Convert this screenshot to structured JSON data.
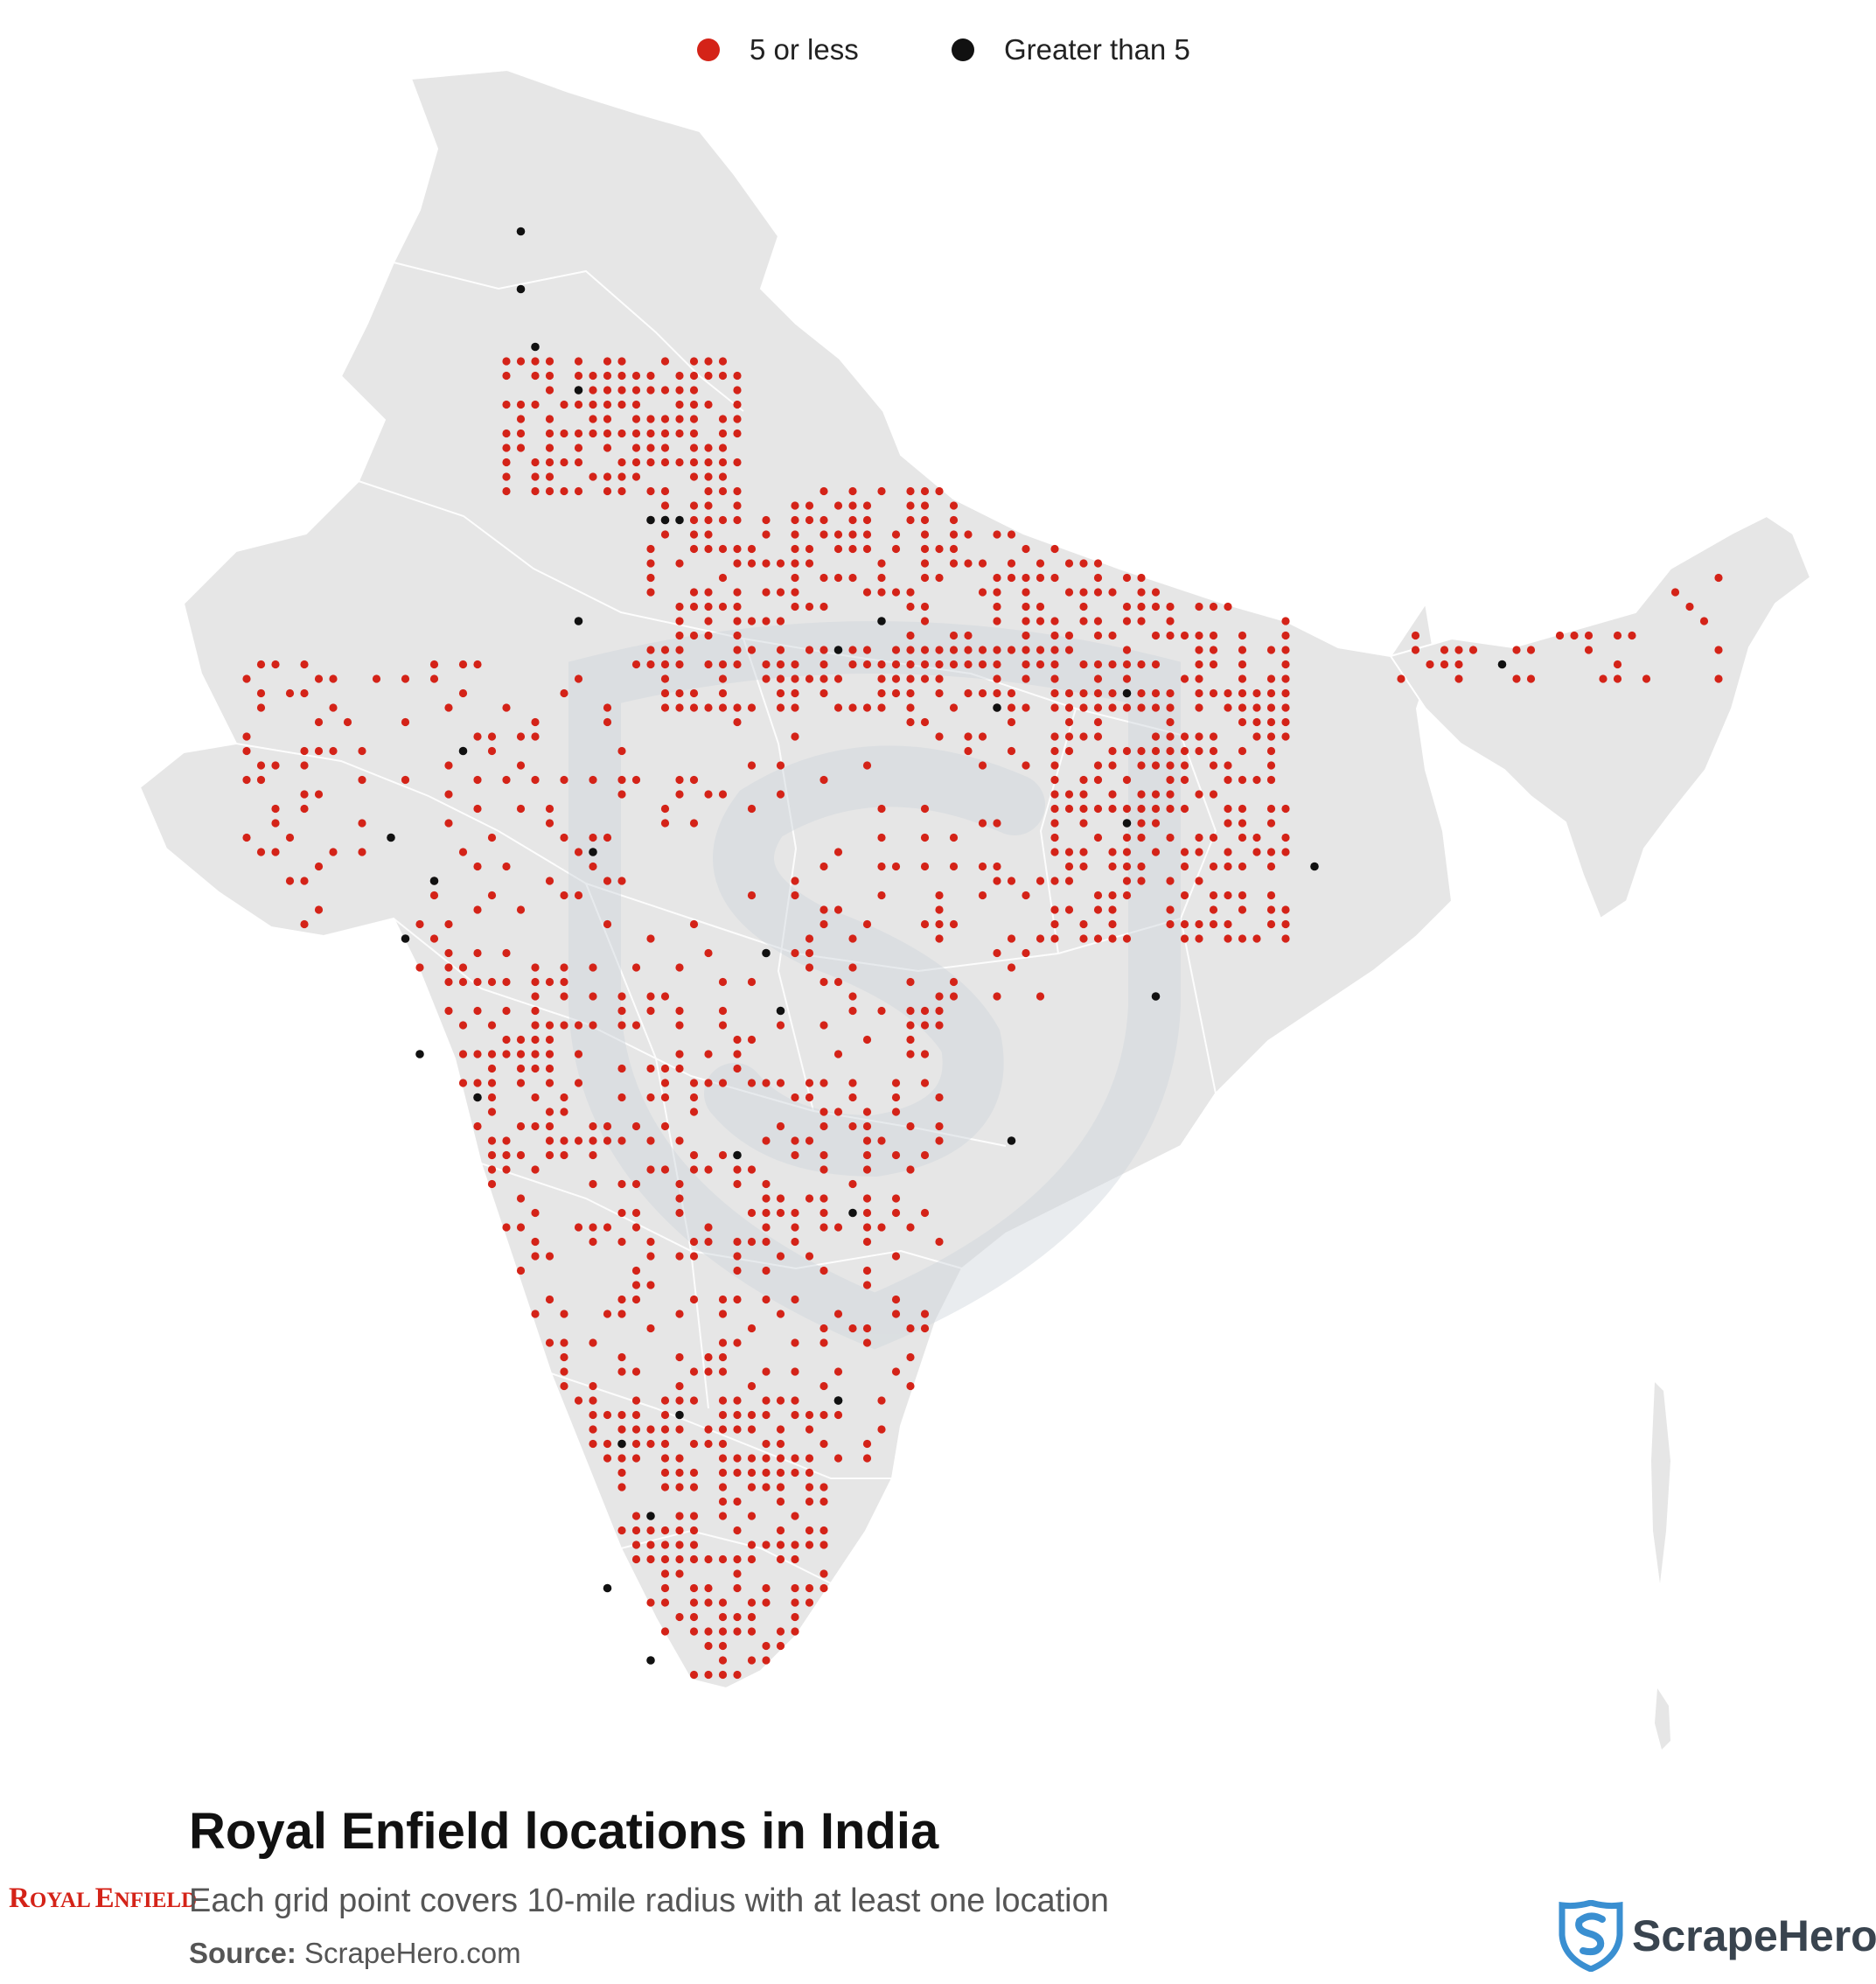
{
  "legend": {
    "items": [
      {
        "label": "5 or less",
        "color": "#d42318"
      },
      {
        "label": "Greater than 5",
        "color": "#111111"
      }
    ]
  },
  "title": "Royal Enfield locations in India",
  "subtitle": "Each grid point covers 10-mile radius with at least one location",
  "source": {
    "key": "Source:",
    "value": "ScrapeHero.com"
  },
  "brand": {
    "logo_text": "Royal Enfield",
    "logo_style": "red serif small-caps wordmark"
  },
  "publisher": {
    "name": "ScrapeHero",
    "icon": "shield-s-icon",
    "color": "#3a8fd1"
  },
  "map": {
    "region": "India",
    "land_color": "#e6e6e6",
    "border_color": "#ffffff",
    "watermark": "shield-s-icon",
    "clusters": [
      {
        "lat": [
          29.0,
          31.5
        ],
        "lon": [
          74.5,
          78.5
        ],
        "density": 0.7
      },
      {
        "lat": [
          25.0,
          29.0
        ],
        "lon": [
          77.0,
          88.0
        ],
        "density": 0.55
      },
      {
        "lat": [
          21.0,
          25.5
        ],
        "lon": [
          84.0,
          88.0
        ],
        "density": 0.55
      },
      {
        "lat": [
          8.0,
          13.0
        ],
        "lon": [
          76.0,
          80.0
        ],
        "density": 0.6
      },
      {
        "lat": [
          17.0,
          21.0
        ],
        "lon": [
          72.5,
          75.5
        ],
        "density": 0.35
      },
      {
        "lat": [
          12.0,
          20.0
        ],
        "lon": [
          74.0,
          82.0
        ],
        "density": 0.3
      },
      {
        "lat": [
          20.0,
          26.0
        ],
        "lon": [
          70.0,
          84.0
        ],
        "density": 0.18
      },
      {
        "lat": [
          25.5,
          27.5
        ],
        "lon": [
          90.0,
          95.5
        ],
        "density": 0.3
      }
    ],
    "large_points": [
      [
        33.7,
        74.8
      ],
      [
        32.7,
        74.8
      ],
      [
        31.6,
        74.9
      ],
      [
        30.9,
        75.8
      ],
      [
        28.6,
        77.2
      ],
      [
        28.7,
        77.4
      ],
      [
        28.5,
        77.0
      ],
      [
        26.9,
        80.9
      ],
      [
        26.4,
        80.3
      ],
      [
        25.3,
        83.0
      ],
      [
        25.6,
        85.1
      ],
      [
        22.6,
        88.4
      ],
      [
        23.3,
        85.3
      ],
      [
        22.3,
        73.2
      ],
      [
        23.0,
        72.6
      ],
      [
        21.2,
        72.8
      ],
      [
        19.1,
        72.9
      ],
      [
        18.5,
        73.9
      ],
      [
        17.4,
        78.5
      ],
      [
        17.7,
        83.3
      ],
      [
        16.5,
        80.6
      ],
      [
        13.1,
        80.3
      ],
      [
        13.0,
        80.2
      ],
      [
        12.9,
        77.6
      ],
      [
        12.3,
        76.6
      ],
      [
        11.0,
        76.9
      ],
      [
        9.9,
        76.3
      ],
      [
        8.5,
        76.9
      ],
      [
        26.1,
        91.7
      ],
      [
        21.1,
        79.1
      ],
      [
        20.3,
        85.8
      ],
      [
        26.8,
        75.8
      ],
      [
        24.6,
        73.7
      ],
      [
        22.7,
        75.9
      ],
      [
        19.9,
        79.3
      ]
    ]
  }
}
